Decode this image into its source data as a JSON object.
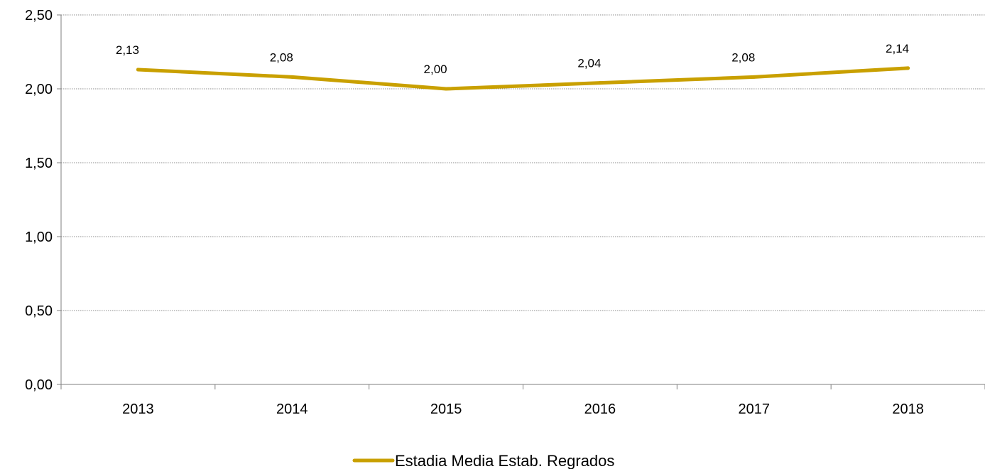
{
  "chart_data": {
    "type": "line",
    "categories": [
      "2013",
      "2014",
      "2015",
      "2016",
      "2017",
      "2018"
    ],
    "series": [
      {
        "name": "Estadia Media Estab. Regrados",
        "values": [
          2.13,
          2.08,
          2.0,
          2.04,
          2.08,
          2.14
        ],
        "data_labels": [
          "2,13",
          "2,08",
          "2,00",
          "2,04",
          "2,08",
          "2,14"
        ],
        "color": "#C9A000"
      }
    ],
    "y_ticks": [
      0,
      0.5,
      1,
      1.5,
      2,
      2.5
    ],
    "y_tick_labels": [
      "0,00",
      "0,50",
      "1,00",
      "1,50",
      "2,00",
      "2,50"
    ],
    "ylim": [
      0,
      2.5
    ],
    "grid": true,
    "legend_position": "bottom-center"
  }
}
